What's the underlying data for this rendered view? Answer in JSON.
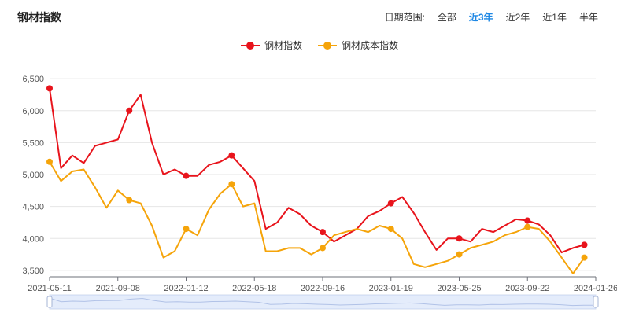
{
  "title": "钢材指数",
  "range_selector": {
    "label": "日期范围:",
    "options": [
      "全部",
      "近3年",
      "近2年",
      "近1年",
      "半年"
    ],
    "active": "近3年"
  },
  "colors": {
    "series1": "#e8141c",
    "series2": "#f5a40a",
    "grid": "#e6e6e6",
    "active": "#1e88e5"
  },
  "chart_data": {
    "type": "line",
    "title": "",
    "legend_position": "top-center",
    "grid": true,
    "xlabel": "",
    "ylabel": "",
    "x_tick_labels": [
      "2021-05-11",
      "2021-09-08",
      "2022-01-12",
      "2022-05-18",
      "2022-09-16",
      "2023-01-19",
      "2023-05-25",
      "2023-09-22",
      "2024-01-26"
    ],
    "y_ticks": [
      3500,
      4000,
      4500,
      5000,
      5500,
      6000,
      6500
    ],
    "y_tick_labels": [
      "3,500",
      "4,000",
      "4,500",
      "5,000",
      "5,500",
      "6,000",
      "6,500"
    ],
    "ylim": [
      3400,
      6650
    ],
    "x_range_index": [
      0,
      47
    ],
    "x_tick_index": [
      0,
      6,
      12,
      18,
      24,
      30,
      36,
      42,
      48
    ],
    "series": [
      {
        "name": "钢材指数",
        "values": [
          6350,
          5100,
          5300,
          5180,
          5450,
          5500,
          5550,
          6000,
          6250,
          5500,
          5000,
          5080,
          4980,
          4980,
          5150,
          5200,
          5300,
          5100,
          4900,
          4150,
          4250,
          4480,
          4380,
          4200,
          4100,
          3950,
          4050,
          4150,
          4350,
          4430,
          4550,
          4650,
          4400,
          4100,
          3820,
          4000,
          4000,
          3950,
          4150,
          4100,
          4200,
          4300,
          4280,
          4220,
          4050,
          3780,
          3850,
          3900
        ],
        "markers_at": [
          0,
          7,
          12,
          16,
          24,
          30,
          36,
          42,
          48
        ]
      },
      {
        "name": "钢材成本指数",
        "values": [
          5200,
          4900,
          5050,
          5080,
          4800,
          4480,
          4750,
          4600,
          4550,
          4200,
          3700,
          3800,
          4150,
          4050,
          4450,
          4700,
          4850,
          4500,
          4550,
          3800,
          3800,
          3850,
          3850,
          3750,
          3850,
          4050,
          4100,
          4150,
          4100,
          4200,
          4150,
          4000,
          3600,
          3550,
          3600,
          3650,
          3750,
          3850,
          3900,
          3950,
          4050,
          4100,
          4180,
          4150,
          3950,
          3700,
          3450,
          3700
        ],
        "markers_at": [
          0,
          7,
          12,
          16,
          24,
          30,
          36,
          42,
          48
        ]
      }
    ]
  }
}
